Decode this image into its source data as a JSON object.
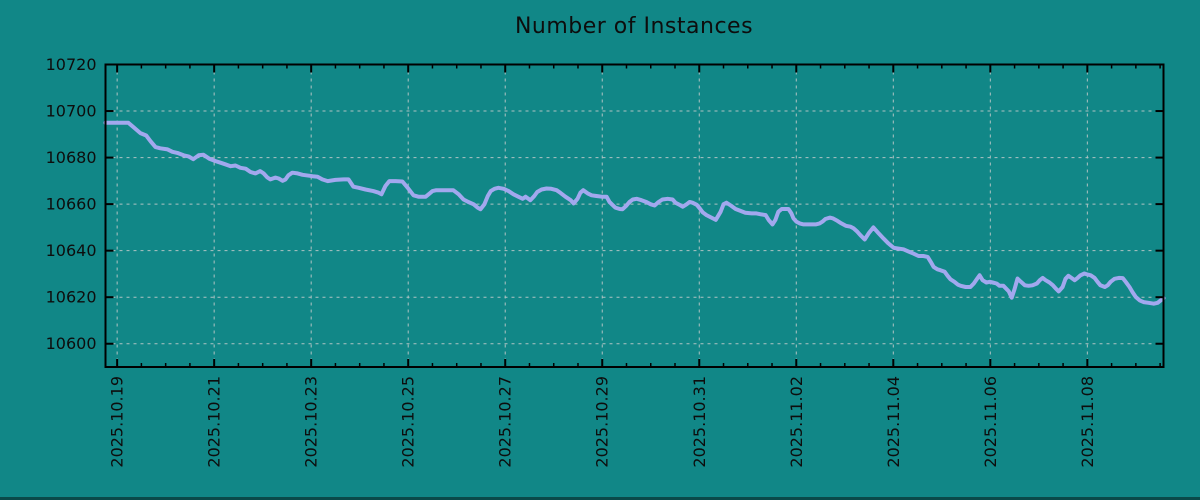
{
  "page": {
    "background_color": "#118787",
    "bottom_bar_color": "#0a4a4a"
  },
  "chart_data": {
    "type": "line",
    "title": "Number of Instances",
    "legend": "none",
    "grid": "on",
    "series_color": "#a2a8ee",
    "grid_color": "#b0c3c3",
    "axis_color": "#000000",
    "text_color": "#0d0d0d",
    "x_epoch_label": "days since 2025.10.19",
    "x_range_days": [
      -0.24,
      21.57
    ],
    "y_range": [
      10590,
      10720
    ],
    "y_ticks": [
      10600,
      10620,
      10640,
      10660,
      10680,
      10700,
      10720
    ],
    "x_major_tick_days": [
      0,
      2,
      4,
      6,
      8,
      10,
      12,
      14,
      16,
      18,
      20
    ],
    "x_tick_labels": [
      "2025.10.19",
      "2025.10.21",
      "2025.10.23",
      "2025.10.25",
      "2025.10.27",
      "2025.10.29",
      "2025.10.31",
      "2025.11.02",
      "2025.11.04",
      "2025.11.06",
      "2025.11.08"
    ],
    "x_minor_step_days": 0.5,
    "points": [
      [
        -0.24,
        10695
      ],
      [
        0.23,
        10695
      ],
      [
        0.34,
        10693
      ],
      [
        0.48,
        10690.5
      ],
      [
        0.6,
        10689.5
      ],
      [
        0.69,
        10687
      ],
      [
        0.79,
        10684.5
      ],
      [
        0.89,
        10684
      ],
      [
        1.04,
        10683.5
      ],
      [
        1.14,
        10682.5
      ],
      [
        1.24,
        10682
      ],
      [
        1.37,
        10681
      ],
      [
        1.47,
        10680.5
      ],
      [
        1.57,
        10679.3
      ],
      [
        1.68,
        10681
      ],
      [
        1.78,
        10681.2
      ],
      [
        1.9,
        10679.5
      ],
      [
        2.03,
        10678.5
      ],
      [
        2.13,
        10677.8
      ],
      [
        2.23,
        10677.1
      ],
      [
        2.34,
        10676.3
      ],
      [
        2.44,
        10676.6
      ],
      [
        2.54,
        10675.6
      ],
      [
        2.65,
        10675.2
      ],
      [
        2.75,
        10673.8
      ],
      [
        2.85,
        10673.2
      ],
      [
        2.95,
        10674.2
      ],
      [
        3.02,
        10673.2
      ],
      [
        3.1,
        10671.4
      ],
      [
        3.16,
        10670.6
      ],
      [
        3.26,
        10671.4
      ],
      [
        3.33,
        10671
      ],
      [
        3.41,
        10670
      ],
      [
        3.47,
        10670.6
      ],
      [
        3.53,
        10672.4
      ],
      [
        3.61,
        10673.5
      ],
      [
        3.72,
        10673.2
      ],
      [
        3.82,
        10672.6
      ],
      [
        4.03,
        10672
      ],
      [
        4.13,
        10671.8
      ],
      [
        4.23,
        10670.6
      ],
      [
        4.34,
        10669.9
      ],
      [
        4.5,
        10670.4
      ],
      [
        4.67,
        10670.6
      ],
      [
        4.77,
        10670.6
      ],
      [
        4.87,
        10667.5
      ],
      [
        4.98,
        10667
      ],
      [
        5.12,
        10666.3
      ],
      [
        5.28,
        10665.6
      ],
      [
        5.39,
        10664.9
      ],
      [
        5.45,
        10664.2
      ],
      [
        5.53,
        10667.8
      ],
      [
        5.61,
        10669.9
      ],
      [
        5.74,
        10669.9
      ],
      [
        5.88,
        10669.7
      ],
      [
        5.99,
        10667
      ],
      [
        6.11,
        10663.8
      ],
      [
        6.21,
        10663.2
      ],
      [
        6.36,
        10663.2
      ],
      [
        6.42,
        10664.2
      ],
      [
        6.5,
        10665.6
      ],
      [
        6.58,
        10666
      ],
      [
        6.93,
        10666
      ],
      [
        7.04,
        10664.2
      ],
      [
        7.14,
        10662
      ],
      [
        7.24,
        10660.9
      ],
      [
        7.35,
        10659.9
      ],
      [
        7.43,
        10658.5
      ],
      [
        7.49,
        10657.8
      ],
      [
        7.57,
        10659.9
      ],
      [
        7.64,
        10663.5
      ],
      [
        7.7,
        10665.6
      ],
      [
        7.78,
        10666.6
      ],
      [
        7.86,
        10667
      ],
      [
        7.97,
        10666.6
      ],
      [
        8.07,
        10665.6
      ],
      [
        8.17,
        10664.2
      ],
      [
        8.27,
        10663.2
      ],
      [
        8.36,
        10662.3
      ],
      [
        8.42,
        10663.2
      ],
      [
        8.52,
        10661.7
      ],
      [
        8.6,
        10663.5
      ],
      [
        8.66,
        10665.2
      ],
      [
        8.75,
        10666.3
      ],
      [
        8.85,
        10666.7
      ],
      [
        8.95,
        10666.6
      ],
      [
        9.06,
        10666
      ],
      [
        9.14,
        10664.8
      ],
      [
        9.24,
        10663.2
      ],
      [
        9.35,
        10661.7
      ],
      [
        9.41,
        10660.3
      ],
      [
        9.49,
        10662.3
      ],
      [
        9.55,
        10664.9
      ],
      [
        9.61,
        10666
      ],
      [
        9.7,
        10664.6
      ],
      [
        9.78,
        10663.8
      ],
      [
        9.88,
        10663.5
      ],
      [
        9.99,
        10663.2
      ],
      [
        10.09,
        10663.2
      ],
      [
        10.15,
        10660.9
      ],
      [
        10.21,
        10659.7
      ],
      [
        10.27,
        10658.5
      ],
      [
        10.36,
        10657.9
      ],
      [
        10.42,
        10657.8
      ],
      [
        10.5,
        10659.4
      ],
      [
        10.56,
        10660.9
      ],
      [
        10.63,
        10662
      ],
      [
        10.71,
        10662.3
      ],
      [
        10.81,
        10661.7
      ],
      [
        10.91,
        10660.9
      ],
      [
        11.0,
        10659.9
      ],
      [
        11.08,
        10659.4
      ],
      [
        11.16,
        10660.9
      ],
      [
        11.24,
        10662
      ],
      [
        11.35,
        10662.3
      ],
      [
        11.45,
        10662
      ],
      [
        11.51,
        10660.6
      ],
      [
        11.59,
        10659.7
      ],
      [
        11.66,
        10658.9
      ],
      [
        11.74,
        10659.9
      ],
      [
        11.8,
        10660.9
      ],
      [
        11.86,
        10660.6
      ],
      [
        11.95,
        10659.7
      ],
      [
        12.01,
        10658.2
      ],
      [
        12.07,
        10656.5
      ],
      [
        12.15,
        10655.3
      ],
      [
        12.23,
        10654.4
      ],
      [
        12.34,
        10653.2
      ],
      [
        12.44,
        10656.7
      ],
      [
        12.5,
        10659.9
      ],
      [
        12.56,
        10660.6
      ],
      [
        12.65,
        10659.4
      ],
      [
        12.75,
        10657.9
      ],
      [
        12.85,
        10657.1
      ],
      [
        12.95,
        10656.3
      ],
      [
        13.08,
        10656
      ],
      [
        13.18,
        10656
      ],
      [
        13.28,
        10655.6
      ],
      [
        13.37,
        10655.3
      ],
      [
        13.43,
        10653.2
      ],
      [
        13.51,
        10651.3
      ],
      [
        13.57,
        10653.2
      ],
      [
        13.63,
        10656.7
      ],
      [
        13.7,
        10657.9
      ],
      [
        13.84,
        10657.9
      ],
      [
        13.9,
        10656
      ],
      [
        13.94,
        10653.9
      ],
      [
        14.0,
        10652.5
      ],
      [
        14.07,
        10651.7
      ],
      [
        14.15,
        10651.3
      ],
      [
        14.4,
        10651.3
      ],
      [
        14.48,
        10651.7
      ],
      [
        14.54,
        10652.5
      ],
      [
        14.6,
        10653.6
      ],
      [
        14.69,
        10654.2
      ],
      [
        14.75,
        10653.9
      ],
      [
        14.85,
        10652.8
      ],
      [
        14.93,
        10651.7
      ],
      [
        15.02,
        10650.7
      ],
      [
        15.12,
        10650.3
      ],
      [
        15.18,
        10649.6
      ],
      [
        15.26,
        10648.1
      ],
      [
        15.32,
        10646.7
      ],
      [
        15.41,
        10644.8
      ],
      [
        15.49,
        10647.4
      ],
      [
        15.59,
        10650
      ],
      [
        15.7,
        10647.4
      ],
      [
        15.8,
        10645.2
      ],
      [
        15.9,
        10643.1
      ],
      [
        16.01,
        10641.2
      ],
      [
        16.11,
        10640.9
      ],
      [
        16.21,
        10640.6
      ],
      [
        16.31,
        10639.7
      ],
      [
        16.42,
        10638.7
      ],
      [
        16.52,
        10637.7
      ],
      [
        16.62,
        10637.7
      ],
      [
        16.71,
        10637.3
      ],
      [
        16.77,
        10635.2
      ],
      [
        16.83,
        10633
      ],
      [
        16.91,
        10632
      ],
      [
        16.97,
        10631.6
      ],
      [
        17.06,
        10630.9
      ],
      [
        17.12,
        10629.2
      ],
      [
        17.18,
        10627.7
      ],
      [
        17.26,
        10626.6
      ],
      [
        17.33,
        10625.4
      ],
      [
        17.39,
        10624.9
      ],
      [
        17.49,
        10624.4
      ],
      [
        17.59,
        10624.4
      ],
      [
        17.66,
        10625.9
      ],
      [
        17.74,
        10628.3
      ],
      [
        17.78,
        10629.4
      ],
      [
        17.84,
        10627.3
      ],
      [
        17.92,
        10626.3
      ],
      [
        17.99,
        10626.6
      ],
      [
        18.05,
        10626.3
      ],
      [
        18.13,
        10625.9
      ],
      [
        18.19,
        10624.9
      ],
      [
        18.27,
        10624.9
      ],
      [
        18.38,
        10622.5
      ],
      [
        18.44,
        10619.8
      ],
      [
        18.5,
        10623.5
      ],
      [
        18.56,
        10628
      ],
      [
        18.63,
        10626.6
      ],
      [
        18.71,
        10625.1
      ],
      [
        18.79,
        10624.9
      ],
      [
        18.87,
        10625.1
      ],
      [
        18.96,
        10625.9
      ],
      [
        19.02,
        10627.3
      ],
      [
        19.08,
        10628.3
      ],
      [
        19.14,
        10627.3
      ],
      [
        19.22,
        10626.3
      ],
      [
        19.29,
        10625.1
      ],
      [
        19.35,
        10623.7
      ],
      [
        19.41,
        10622.5
      ],
      [
        19.49,
        10624.4
      ],
      [
        19.55,
        10627.9
      ],
      [
        19.61,
        10629.2
      ],
      [
        19.68,
        10628.2
      ],
      [
        19.74,
        10627.3
      ],
      [
        19.8,
        10628.3
      ],
      [
        19.86,
        10629.4
      ],
      [
        19.94,
        10630.2
      ],
      [
        20.01,
        10629.7
      ],
      [
        20.07,
        10629.4
      ],
      [
        20.15,
        10628.3
      ],
      [
        20.21,
        10626.6
      ],
      [
        20.27,
        10625.1
      ],
      [
        20.36,
        10624.4
      ],
      [
        20.42,
        10625.1
      ],
      [
        20.48,
        10626.6
      ],
      [
        20.56,
        10627.9
      ],
      [
        20.65,
        10628.3
      ],
      [
        20.73,
        10628.2
      ],
      [
        20.79,
        10626.6
      ],
      [
        20.87,
        10624.4
      ],
      [
        20.93,
        10622.2
      ],
      [
        21.0,
        10620.1
      ],
      [
        21.08,
        10618.6
      ],
      [
        21.16,
        10617.9
      ],
      [
        21.26,
        10617.6
      ],
      [
        21.37,
        10617.2
      ],
      [
        21.45,
        10617.6
      ],
      [
        21.51,
        10618.6
      ],
      [
        21.57,
        10619.6
      ]
    ]
  }
}
